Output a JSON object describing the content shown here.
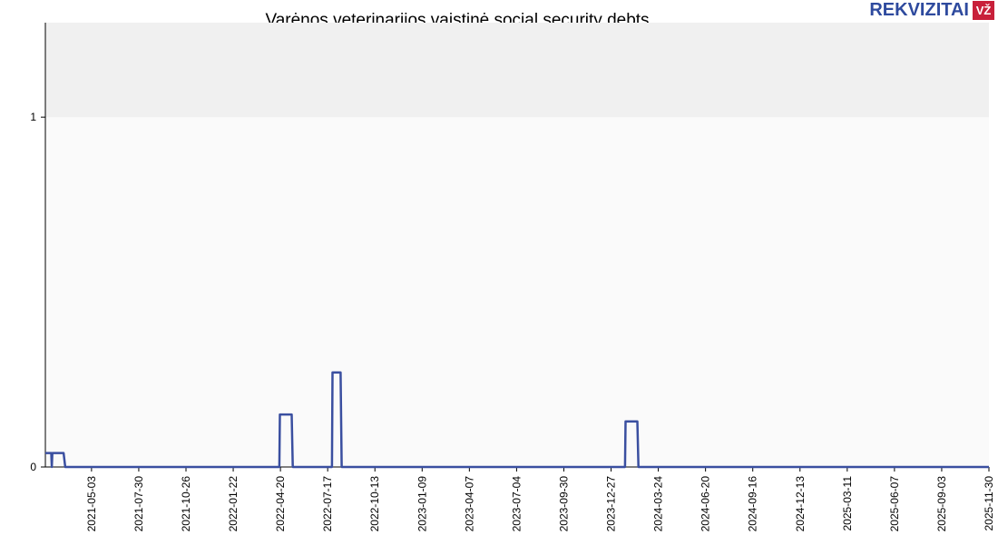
{
  "title": "Varėnos veterinarijos vaistinė social security debts",
  "logo": {
    "text": "REKVIZITAI",
    "badge": "VŽ"
  },
  "chart_data": {
    "type": "line",
    "title": "Varėnos veterinarijos vaistinė social security debts",
    "xlabel": "",
    "ylabel": "",
    "xlim": [
      "2021-02-06",
      "2025-11-30"
    ],
    "ylim": [
      0,
      1.27
    ],
    "yticks": [
      0,
      1
    ],
    "xticks": [
      "2021-05-03",
      "2021-07-30",
      "2021-10-26",
      "2022-01-22",
      "2022-04-20",
      "2022-07-17",
      "2022-10-13",
      "2023-01-09",
      "2023-04-07",
      "2023-07-04",
      "2023-09-30",
      "2023-12-27",
      "2024-03-24",
      "2024-06-20",
      "2024-09-16",
      "2024-12-13",
      "2025-03-11",
      "2025-06-07",
      "2025-09-03",
      "2025-11-30"
    ],
    "step": true,
    "points": [
      [
        "2021-02-06",
        0.04
      ],
      [
        "2021-02-17",
        0.04
      ],
      [
        "2021-02-18",
        0
      ],
      [
        "2021-02-19",
        0.04
      ],
      [
        "2021-03-12",
        0.04
      ],
      [
        "2021-03-15",
        0
      ],
      [
        "2022-04-18",
        0
      ],
      [
        "2022-04-19",
        0.15
      ],
      [
        "2022-05-11",
        0.15
      ],
      [
        "2022-05-13",
        0
      ],
      [
        "2022-07-25",
        0
      ],
      [
        "2022-07-26",
        0.27
      ],
      [
        "2022-08-10",
        0.27
      ],
      [
        "2022-08-12",
        0
      ],
      [
        "2024-01-22",
        0
      ],
      [
        "2024-01-23",
        0.13
      ],
      [
        "2024-02-14",
        0.13
      ],
      [
        "2024-02-16",
        0
      ],
      [
        "2025-11-30",
        0
      ]
    ],
    "colors": {
      "line": "#3a4fa0",
      "band_above_max": "#f0f0f0",
      "plot_bg": "#fafafa"
    },
    "grid": false,
    "legend": "none"
  }
}
